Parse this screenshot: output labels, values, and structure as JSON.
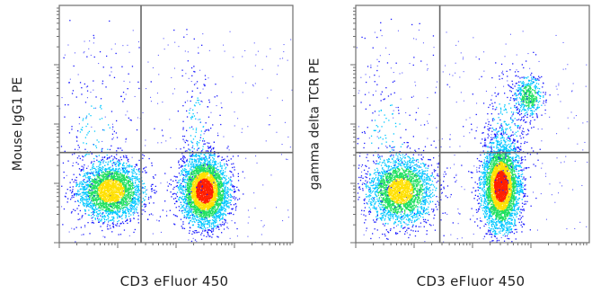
{
  "chart_data": [
    {
      "type": "scatter",
      "subtype": "flow-cytometry-density-dot-plot",
      "xlabel": "CD3 eFluor 450",
      "ylabel": "Mouse IgG1 PE",
      "xscale": "log",
      "yscale": "log",
      "gate": {
        "x": 0.35,
        "y": 0.38
      },
      "populations": [
        {
          "cx": 0.22,
          "cy": 0.22,
          "sx": 0.07,
          "sy": 0.06,
          "n": 2600,
          "peak": 0.75
        },
        {
          "cx": 0.62,
          "cy": 0.22,
          "sx": 0.05,
          "sy": 0.07,
          "n": 3600,
          "peak": 1.0
        },
        {
          "cx": 0.58,
          "cy": 0.45,
          "sx": 0.04,
          "sy": 0.18,
          "n": 180,
          "peak": 0.12
        },
        {
          "cx": 0.15,
          "cy": 0.45,
          "sx": 0.1,
          "sy": 0.2,
          "n": 220,
          "peak": 0.1
        }
      ],
      "quadrant_counts_percent": null
    },
    {
      "type": "scatter",
      "subtype": "flow-cytometry-density-dot-plot",
      "xlabel": "CD3 eFluor 450",
      "ylabel": "gamma delta TCR PE",
      "xscale": "log",
      "yscale": "log",
      "gate": {
        "x": 0.36,
        "y": 0.38
      },
      "populations": [
        {
          "cx": 0.19,
          "cy": 0.22,
          "sx": 0.07,
          "sy": 0.07,
          "n": 2500,
          "peak": 0.72
        },
        {
          "cx": 0.62,
          "cy": 0.24,
          "sx": 0.04,
          "sy": 0.09,
          "n": 3800,
          "peak": 1.0
        },
        {
          "cx": 0.74,
          "cy": 0.62,
          "sx": 0.03,
          "sy": 0.04,
          "n": 450,
          "peak": 0.55
        },
        {
          "cx": 0.64,
          "cy": 0.5,
          "sx": 0.06,
          "sy": 0.12,
          "n": 280,
          "peak": 0.12
        },
        {
          "cx": 0.13,
          "cy": 0.45,
          "sx": 0.1,
          "sy": 0.2,
          "n": 200,
          "peak": 0.1
        }
      ],
      "quadrant_counts_percent": null
    }
  ],
  "colors": {
    "low": "#1a1aff",
    "mid": "#00c8ff",
    "midhigh": "#20e060",
    "high": "#ffe000",
    "peak": "#ff2000",
    "axis": "#6e6e6e",
    "gate_line": "#666666"
  }
}
